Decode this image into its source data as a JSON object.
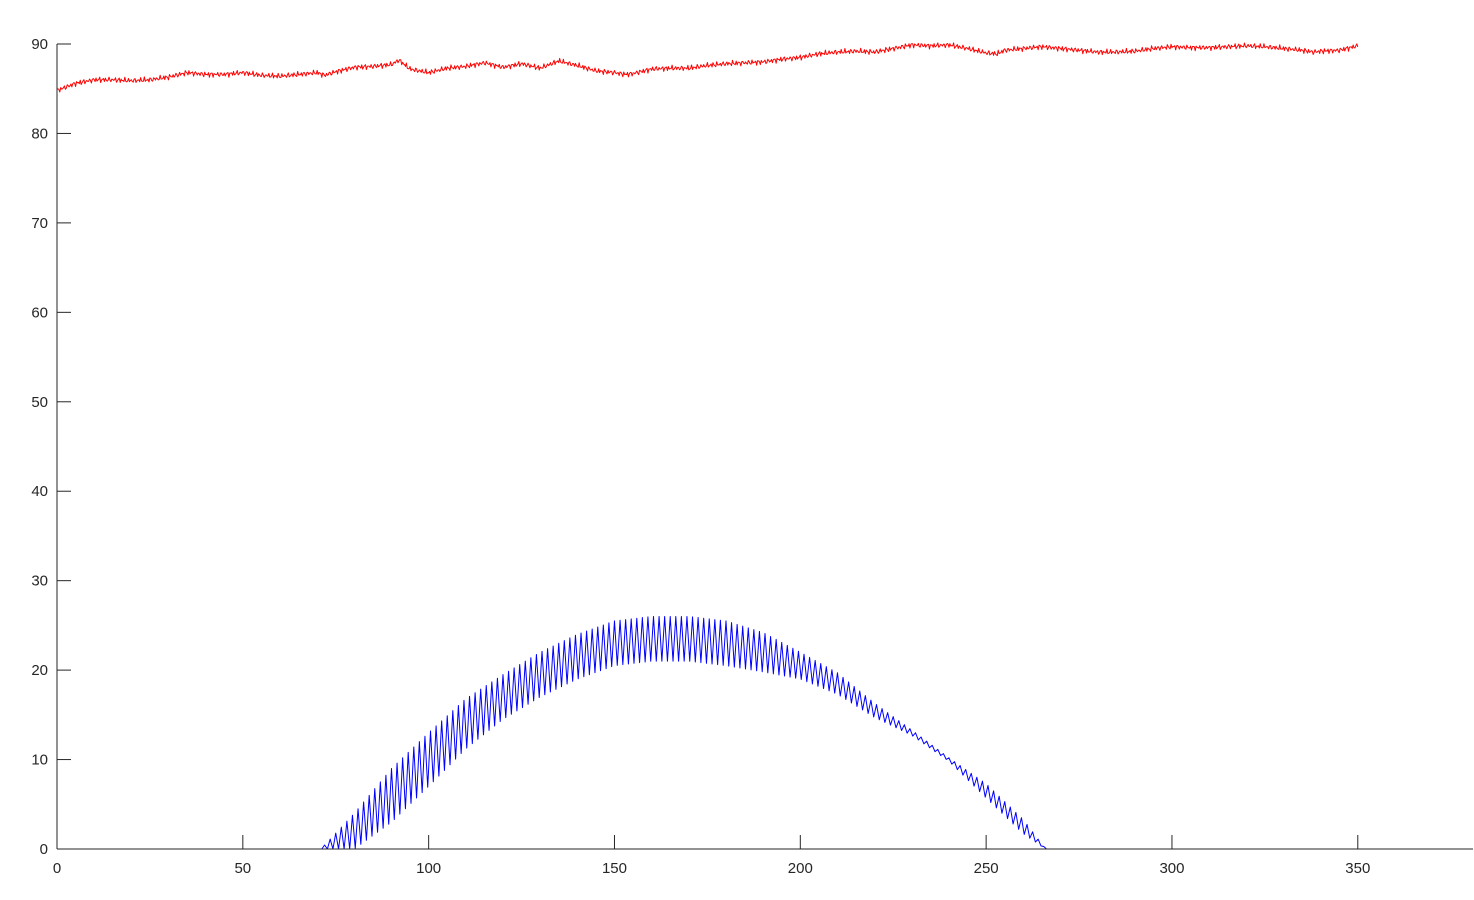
{
  "chart_data": {
    "type": "line",
    "title": "",
    "xlabel": "",
    "ylabel": "",
    "xlim": [
      0,
      381
    ],
    "ylim": [
      0,
      90
    ],
    "x_ticks": [
      0,
      50,
      100,
      150,
      200,
      250,
      300,
      350
    ],
    "y_ticks": [
      0,
      10,
      20,
      30,
      40,
      50,
      60,
      70,
      80,
      90
    ],
    "grid": false,
    "legend": "none",
    "series": [
      {
        "color": "#ff0000",
        "x": [
          0,
          5,
          10,
          15,
          20,
          25,
          30,
          35,
          40,
          45,
          50,
          55,
          60,
          65,
          70,
          72,
          75,
          80,
          85,
          90,
          92,
          95,
          100,
          102,
          105,
          110,
          115,
          120,
          125,
          130,
          135,
          140,
          145,
          150,
          153,
          155,
          160,
          165,
          170,
          175,
          180,
          185,
          190,
          195,
          200,
          205,
          210,
          215,
          220,
          225,
          230,
          235,
          240,
          245,
          250,
          253,
          255,
          260,
          265,
          270,
          275,
          280,
          285,
          290,
          295,
          300,
          305,
          310,
          315,
          320,
          325,
          330,
          335,
          338,
          340,
          345,
          350
        ],
        "y": [
          84.8,
          85.6,
          86.0,
          86.0,
          85.9,
          86.0,
          86.3,
          86.8,
          86.6,
          86.6,
          86.8,
          86.5,
          86.4,
          86.6,
          86.8,
          86.5,
          86.9,
          87.4,
          87.5,
          87.7,
          88.2,
          87.2,
          86.8,
          87.0,
          87.3,
          87.5,
          87.9,
          87.4,
          87.8,
          87.3,
          88.1,
          87.6,
          87.0,
          86.8,
          86.6,
          86.7,
          87.2,
          87.3,
          87.3,
          87.6,
          87.8,
          87.9,
          88.0,
          88.3,
          88.5,
          88.9,
          89.1,
          89.2,
          89.1,
          89.5,
          89.9,
          89.8,
          89.9,
          89.5,
          89.0,
          88.9,
          89.3,
          89.5,
          89.7,
          89.5,
          89.3,
          89.1,
          89.1,
          89.2,
          89.5,
          89.7,
          89.6,
          89.6,
          89.7,
          89.8,
          89.7,
          89.5,
          89.3,
          89.1,
          89.2,
          89.3,
          89.8
        ]
      },
      {
        "color": "#0000ff",
        "x": [
          0,
          71,
          80,
          90,
          100,
          110,
          120,
          130,
          140,
          150,
          160,
          170,
          180,
          190,
          200,
          210,
          220,
          230,
          240,
          250,
          260,
          266,
          350
        ],
        "y": [
          0,
          0,
          2,
          6,
          10,
          14,
          17,
          19.5,
          21.5,
          23,
          23.5,
          23.5,
          23,
          22,
          20.5,
          18.5,
          15.5,
          13,
          10,
          6.5,
          2.5,
          0,
          0
        ],
        "ripple_amplitude": [
          0,
          0,
          2,
          3,
          3,
          2.8,
          2.5,
          2.5,
          2.5,
          2.5,
          2.5,
          2.5,
          2.5,
          2.2,
          1.5,
          1.2,
          0.8,
          0.3,
          0.2,
          0.8,
          0.8,
          0,
          0
        ],
        "ripple_period": 1.5
      }
    ]
  }
}
